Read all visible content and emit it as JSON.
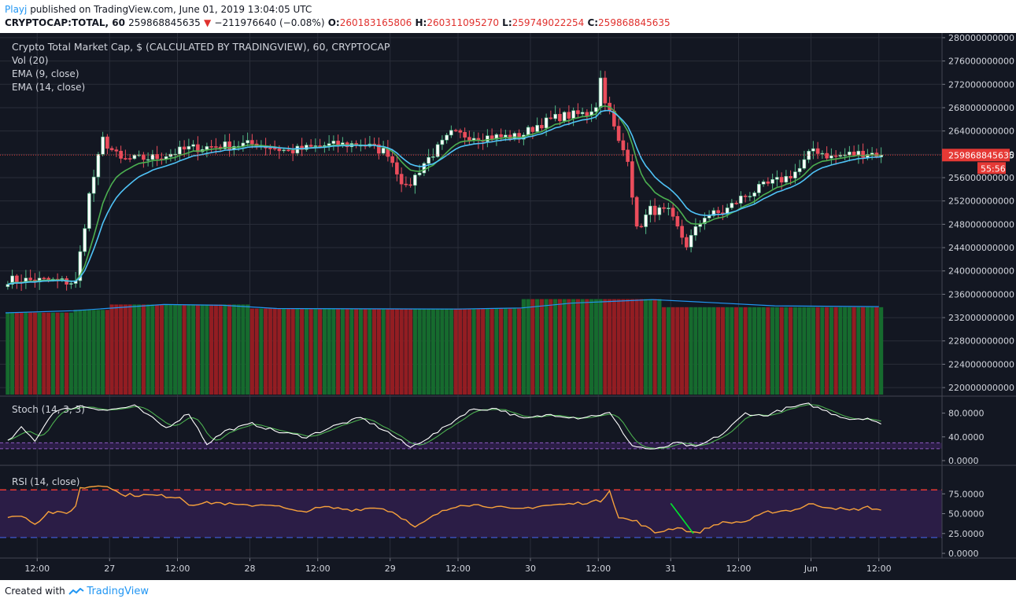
{
  "header": {
    "user": "Playj",
    "published_text": "published on TradingView.com, June 01, 2019 13:04:05 UTC",
    "symbol": "CRYPTOCAP:TOTAL, 60",
    "last": "259868845635",
    "change": "−211976640 (−0.08%)",
    "ohlc": [
      {
        "label": "O:",
        "value": "260183165806"
      },
      {
        "label": "H:",
        "value": "260311095270"
      },
      {
        "label": "L:",
        "value": "259749022254"
      },
      {
        "label": "C:",
        "value": "259868845635"
      }
    ]
  },
  "legend": {
    "title": "Crypto Total Market Cap, $ (CALCULATED BY TRADINGVIEW), 60, CRYPTOCAP",
    "vol": "Vol (20)",
    "ema9": "EMA (9, close)",
    "ema14": "EMA (14, close)",
    "stoch": "Stoch (14, 3, 3)",
    "rsi": "RSI (14, close)"
  },
  "footer": {
    "created": "Created with",
    "brand": "TradingView"
  },
  "colors": {
    "background": "#131722",
    "grid": "#2a2e39",
    "up": "#53b987",
    "down": "#eb4d5c",
    "vol_up": "#166b2e",
    "vol_down": "#931d22",
    "ema9": "#4caf50",
    "ema14": "#4fc3f7",
    "vol_ma": "#2196f3",
    "stoch_k": "#ffffff",
    "stoch_d": "#4caf50",
    "rsi": "#f7a13b",
    "rsi_band": "#2b1d46",
    "rsi_upper": "#e53935",
    "rsi_lower": "#3949ab",
    "last_price": "#e53935",
    "trendline": "#00e62e"
  },
  "chart_data": {
    "type": "candlestick",
    "price_axis_ticks": [
      "280000000000",
      "276000000000",
      "272000000000",
      "268000000000",
      "264000000000",
      "260000000000",
      "256000000000",
      "252000000000",
      "248000000000",
      "244000000000",
      "240000000000",
      "236000000000",
      "232000000000",
      "228000000000",
      "224000000000",
      "220000000000"
    ],
    "price_range": [
      218800000000,
      280800000000
    ],
    "last_price_label": "259868845635",
    "countdown_label": "55:56",
    "time_axis_labels": [
      "12:00",
      "27",
      "12:00",
      "28",
      "12:00",
      "29",
      "12:00",
      "30",
      "12:00",
      "31",
      "12:00",
      "Jun",
      "12:00"
    ],
    "stoch_axis_ticks": [
      "80.0000",
      "40.0000",
      "0.0000"
    ],
    "stoch_bands": [
      20,
      30
    ],
    "rsi_axis_ticks": [
      "75.0000",
      "50.0000",
      "25.0000",
      "0.0000"
    ],
    "rsi_bands": [
      20,
      80
    ],
    "anchors": [
      {
        "t": 0,
        "c": 238.5
      },
      {
        "t": 10,
        "c": 238.3
      },
      {
        "t": 15,
        "c": 238.0
      },
      {
        "t": 18,
        "c": 253.0
      },
      {
        "t": 21,
        "c": 262.5
      },
      {
        "t": 25,
        "c": 259.0
      },
      {
        "t": 33,
        "c": 259.5
      },
      {
        "t": 40,
        "c": 261.0
      },
      {
        "t": 48,
        "c": 261.5
      },
      {
        "t": 55,
        "c": 261.8
      },
      {
        "t": 62,
        "c": 260.5
      },
      {
        "t": 70,
        "c": 261.5
      },
      {
        "t": 78,
        "c": 261.8
      },
      {
        "t": 84,
        "c": 260.3
      },
      {
        "t": 88,
        "c": 254.0
      },
      {
        "t": 92,
        "c": 258.5
      },
      {
        "t": 98,
        "c": 263.5
      },
      {
        "t": 105,
        "c": 263.0
      },
      {
        "t": 113,
        "c": 263.0
      },
      {
        "t": 117,
        "c": 265.0
      },
      {
        "t": 122,
        "c": 266.5
      },
      {
        "t": 128,
        "c": 267.0
      },
      {
        "t": 130,
        "c": 268.5
      },
      {
        "t": 131,
        "c": 273.0
      },
      {
        "t": 132,
        "c": 269.5
      },
      {
        "t": 135,
        "c": 262.0
      },
      {
        "t": 137,
        "c": 259.5
      },
      {
        "t": 139,
        "c": 247.0
      },
      {
        "t": 142,
        "c": 250.5
      },
      {
        "t": 146,
        "c": 250.0
      },
      {
        "t": 150,
        "c": 244.5
      },
      {
        "t": 154,
        "c": 249.5
      },
      {
        "t": 158,
        "c": 250.0
      },
      {
        "t": 162,
        "c": 252.5
      },
      {
        "t": 167,
        "c": 254.5
      },
      {
        "t": 172,
        "c": 256.0
      },
      {
        "t": 175,
        "c": 257.5
      },
      {
        "t": 178,
        "c": 261.0
      },
      {
        "t": 182,
        "c": 259.5
      },
      {
        "t": 186,
        "c": 260.0
      },
      {
        "t": 190,
        "c": 260.3
      },
      {
        "t": 193,
        "c": 259.87
      }
    ],
    "stoch_k_anchors": [
      {
        "t": 0,
        "v": 32
      },
      {
        "t": 3,
        "v": 55
      },
      {
        "t": 6,
        "v": 34
      },
      {
        "t": 10,
        "v": 82
      },
      {
        "t": 16,
        "v": 92
      },
      {
        "t": 22,
        "v": 85
      },
      {
        "t": 28,
        "v": 92
      },
      {
        "t": 35,
        "v": 55
      },
      {
        "t": 40,
        "v": 80
      },
      {
        "t": 44,
        "v": 28
      },
      {
        "t": 48,
        "v": 50
      },
      {
        "t": 54,
        "v": 62
      },
      {
        "t": 60,
        "v": 48
      },
      {
        "t": 66,
        "v": 40
      },
      {
        "t": 72,
        "v": 58
      },
      {
        "t": 78,
        "v": 72
      },
      {
        "t": 84,
        "v": 48
      },
      {
        "t": 89,
        "v": 22
      },
      {
        "t": 95,
        "v": 48
      },
      {
        "t": 102,
        "v": 85
      },
      {
        "t": 108,
        "v": 88
      },
      {
        "t": 114,
        "v": 70
      },
      {
        "t": 120,
        "v": 78
      },
      {
        "t": 126,
        "v": 72
      },
      {
        "t": 133,
        "v": 80
      },
      {
        "t": 138,
        "v": 25
      },
      {
        "t": 143,
        "v": 18
      },
      {
        "t": 148,
        "v": 30
      },
      {
        "t": 152,
        "v": 22
      },
      {
        "t": 158,
        "v": 45
      },
      {
        "t": 163,
        "v": 80
      },
      {
        "t": 167,
        "v": 75
      },
      {
        "t": 172,
        "v": 88
      },
      {
        "t": 177,
        "v": 95
      },
      {
        "t": 182,
        "v": 80
      },
      {
        "t": 186,
        "v": 70
      },
      {
        "t": 190,
        "v": 72
      },
      {
        "t": 193,
        "v": 60
      }
    ],
    "rsi_anchors": [
      {
        "t": 0,
        "v": 47
      },
      {
        "t": 4,
        "v": 46
      },
      {
        "t": 6,
        "v": 37
      },
      {
        "t": 9,
        "v": 52
      },
      {
        "t": 13,
        "v": 50
      },
      {
        "t": 15,
        "v": 60
      },
      {
        "t": 16,
        "v": 82
      },
      {
        "t": 19,
        "v": 85
      },
      {
        "t": 22,
        "v": 86
      },
      {
        "t": 25,
        "v": 74
      },
      {
        "t": 32,
        "v": 73
      },
      {
        "t": 38,
        "v": 71
      },
      {
        "t": 40,
        "v": 62
      },
      {
        "t": 46,
        "v": 64
      },
      {
        "t": 52,
        "v": 60
      },
      {
        "t": 58,
        "v": 62
      },
      {
        "t": 64,
        "v": 52
      },
      {
        "t": 70,
        "v": 58
      },
      {
        "t": 76,
        "v": 55
      },
      {
        "t": 82,
        "v": 58
      },
      {
        "t": 86,
        "v": 50
      },
      {
        "t": 90,
        "v": 32
      },
      {
        "t": 95,
        "v": 50
      },
      {
        "t": 100,
        "v": 62
      },
      {
        "t": 106,
        "v": 60
      },
      {
        "t": 112,
        "v": 55
      },
      {
        "t": 118,
        "v": 60
      },
      {
        "t": 124,
        "v": 62
      },
      {
        "t": 131,
        "v": 66
      },
      {
        "t": 133,
        "v": 80
      },
      {
        "t": 135,
        "v": 45
      },
      {
        "t": 139,
        "v": 40
      },
      {
        "t": 143,
        "v": 26
      },
      {
        "t": 148,
        "v": 33
      },
      {
        "t": 152,
        "v": 25
      },
      {
        "t": 157,
        "v": 38
      },
      {
        "t": 163,
        "v": 40
      },
      {
        "t": 168,
        "v": 52
      },
      {
        "t": 174,
        "v": 55
      },
      {
        "t": 177,
        "v": 62
      },
      {
        "t": 182,
        "v": 58
      },
      {
        "t": 186,
        "v": 54
      },
      {
        "t": 190,
        "v": 58
      },
      {
        "t": 193,
        "v": 55
      }
    ],
    "rsi_trendline": [
      {
        "t": 147,
        "v": 63
      },
      {
        "t": 152,
        "v": 25
      }
    ],
    "volume_blocks": [
      {
        "t0": 0,
        "t1": 15,
        "v": 30.5
      },
      {
        "t0": 15,
        "t1": 23,
        "v": 31.5
      },
      {
        "t0": 23,
        "t1": 54,
        "v": 33.5
      },
      {
        "t0": 54,
        "t1": 114,
        "v": 32.0
      },
      {
        "t0": 114,
        "t1": 145,
        "v": 35.5
      },
      {
        "t0": 145,
        "t1": 194,
        "v": 32.5
      }
    ],
    "volume_range": [
      0,
      38
    ],
    "vol_ma": [
      {
        "t": 0,
        "v": 30.4
      },
      {
        "t": 15,
        "v": 31.2
      },
      {
        "t": 35,
        "v": 33.5
      },
      {
        "t": 48,
        "v": 33.2
      },
      {
        "t": 60,
        "v": 32.0
      },
      {
        "t": 100,
        "v": 31.8
      },
      {
        "t": 114,
        "v": 32.2
      },
      {
        "t": 125,
        "v": 34.0
      },
      {
        "t": 143,
        "v": 35.3
      },
      {
        "t": 155,
        "v": 34.3
      },
      {
        "t": 170,
        "v": 33.0
      },
      {
        "t": 193,
        "v": 32.7
      }
    ]
  }
}
